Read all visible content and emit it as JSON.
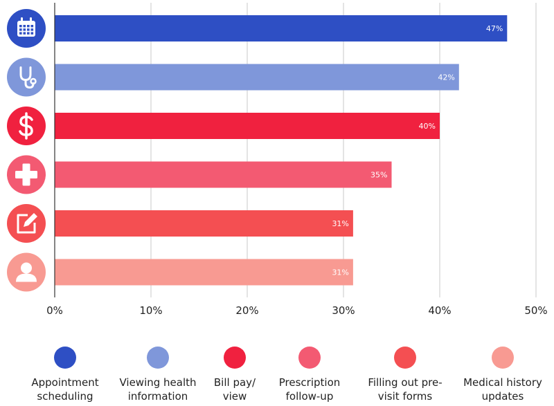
{
  "chart_data": {
    "type": "bar",
    "orientation": "horizontal",
    "categories": [
      "Appointment scheduling",
      "Viewing health information",
      "Bill pay/ view",
      "Prescription follow-up",
      "Filling out pre- visit forms",
      "Medical history updates"
    ],
    "values": [
      47,
      42,
      40,
      35,
      31,
      31
    ],
    "value_labels": [
      "47%",
      "42%",
      "40%",
      "35%",
      "31%",
      "31%"
    ],
    "colors": [
      "#2e4fc4",
      "#7f97da",
      "#f0213f",
      "#f35a72",
      "#f44f52",
      "#f89a92"
    ],
    "icons": [
      "calendar-icon",
      "stethoscope-icon",
      "dollar-icon",
      "medical-cross-icon",
      "edit-form-icon",
      "user-icon"
    ],
    "xlim": [
      0,
      50
    ],
    "xticks": [
      0,
      10,
      20,
      30,
      40,
      50
    ],
    "xtick_labels": [
      "0%",
      "10%",
      "20%",
      "30%",
      "40%",
      "50%"
    ],
    "grid": true,
    "legend_position": "bottom",
    "legend_lines": [
      [
        "Appointment",
        "scheduling"
      ],
      [
        "Viewing health",
        "information"
      ],
      [
        "Bill pay/",
        "view"
      ],
      [
        "Prescription",
        "follow-up"
      ],
      [
        "Filling out pre-",
        "visit forms"
      ],
      [
        "Medical history",
        "updates"
      ]
    ]
  }
}
